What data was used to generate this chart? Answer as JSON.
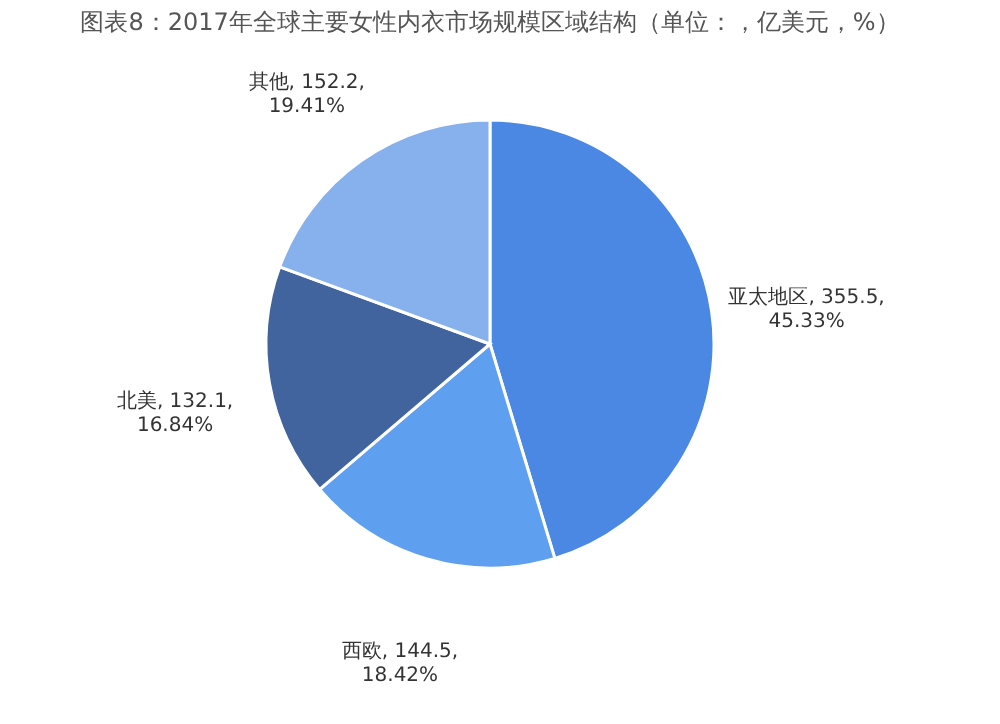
{
  "chart_data": {
    "type": "pie",
    "title": "图表8：2017年全球主要女性内衣市场规模区域结构（单位：，亿美元，%）",
    "categories": [
      "亚太地区",
      "西欧",
      "北美",
      "其他"
    ],
    "values": [
      355.5,
      144.5,
      132.1,
      152.2
    ],
    "value_labels": [
      "355.5,\n45.33%",
      "144.5,\n18.42%",
      "132.1,\n16.84%",
      "152.2,\n19.41%"
    ],
    "colors": [
      "#4a88e4",
      "#5e9ff0",
      "#41649e",
      "#86b1ec"
    ],
    "legend": false
  }
}
